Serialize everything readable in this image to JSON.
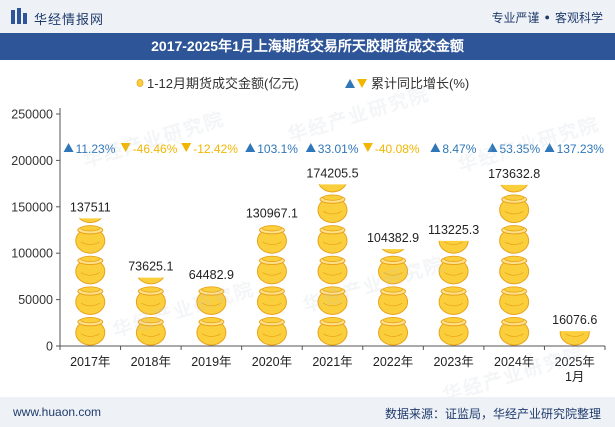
{
  "header": {
    "brand": "华经情报网",
    "tags": [
      "专业严谨",
      "客观科学"
    ]
  },
  "title": "2017-2025年1月上海期货交易所天胶期货成交金额",
  "footer": {
    "website": "www.huaon.com",
    "source": "数据来源：证监局，华经产业研究院整理"
  },
  "watermark": "华经产业研究院",
  "colors": {
    "header_bg": "#eef2f7",
    "title_bg": "#2e5597",
    "coin_fill": "#fbcf3c",
    "coin_stroke": "#e9a21a",
    "up": "#2f77b8",
    "down": "#f2b600"
  },
  "chart_data": {
    "type": "bar",
    "categories": [
      "2017年",
      "2018年",
      "2019年",
      "2020年",
      "2021年",
      "2022年",
      "2023年",
      "2024年",
      "2025年\n1月"
    ],
    "series": [
      {
        "name": "1-12月期货成交金额(亿元)",
        "values": [
          137511,
          73625.1,
          64482.9,
          130967.1,
          174205.5,
          104382.9,
          113225.3,
          173632.8,
          16076.6
        ]
      }
    ],
    "value_labels": [
      "137511",
      "73625.1",
      "64482.9",
      "130967.1",
      "174205.5",
      "104382.9",
      "113225.3",
      "173632.8",
      "16076.6"
    ],
    "growth": {
      "name": "累计同比增长(%)",
      "labels": [
        "11.23%",
        "-46.46%",
        "-12.42%",
        "103.1%",
        "33.01%",
        "-40.08%",
        "8.47%",
        "53.35%",
        "137.23%"
      ],
      "directions": [
        "up",
        "down",
        "down",
        "up",
        "up",
        "down",
        "up",
        "up",
        "up"
      ]
    },
    "yaxis": {
      "ticks": [
        0,
        50000,
        100000,
        150000,
        200000,
        250000
      ],
      "labels": [
        "0",
        "50000",
        "100000",
        "150000",
        "200000",
        "250000"
      ],
      "ylim": [
        0,
        250000
      ]
    },
    "legend_position": "top-center",
    "grid": false
  }
}
